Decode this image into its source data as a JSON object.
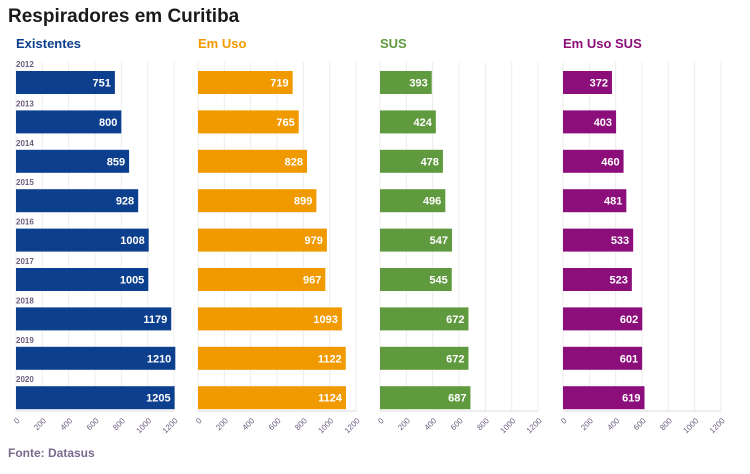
{
  "page": {
    "title": "Respiradores em Curitiba",
    "source": "Fonte: Datasus"
  },
  "chart_data": {
    "type": "bar",
    "orientation": "horizontal",
    "title": "Respiradores em Curitiba",
    "categories": [
      "2012",
      "2013",
      "2014",
      "2015",
      "2016",
      "2017",
      "2018",
      "2019",
      "2020"
    ],
    "xlim": [
      0,
      1200
    ],
    "ticks": [
      0,
      200,
      400,
      600,
      800,
      1000,
      1200
    ],
    "grid": true,
    "series": [
      {
        "name": "Existentes",
        "color": "#0d3f8f",
        "values": [
          751,
          800,
          859,
          928,
          1008,
          1005,
          1179,
          1210,
          1205
        ]
      },
      {
        "name": "Em Uso",
        "color": "#f09a00",
        "values": [
          719,
          765,
          828,
          899,
          979,
          967,
          1093,
          1122,
          1124
        ]
      },
      {
        "name": "SUS",
        "color": "#5f9a3f",
        "values": [
          393,
          424,
          478,
          496,
          547,
          545,
          672,
          672,
          687
        ]
      },
      {
        "name": "Em Uso SUS",
        "color": "#8b0e7a",
        "values": [
          372,
          403,
          460,
          481,
          533,
          523,
          602,
          601,
          619
        ]
      }
    ]
  }
}
